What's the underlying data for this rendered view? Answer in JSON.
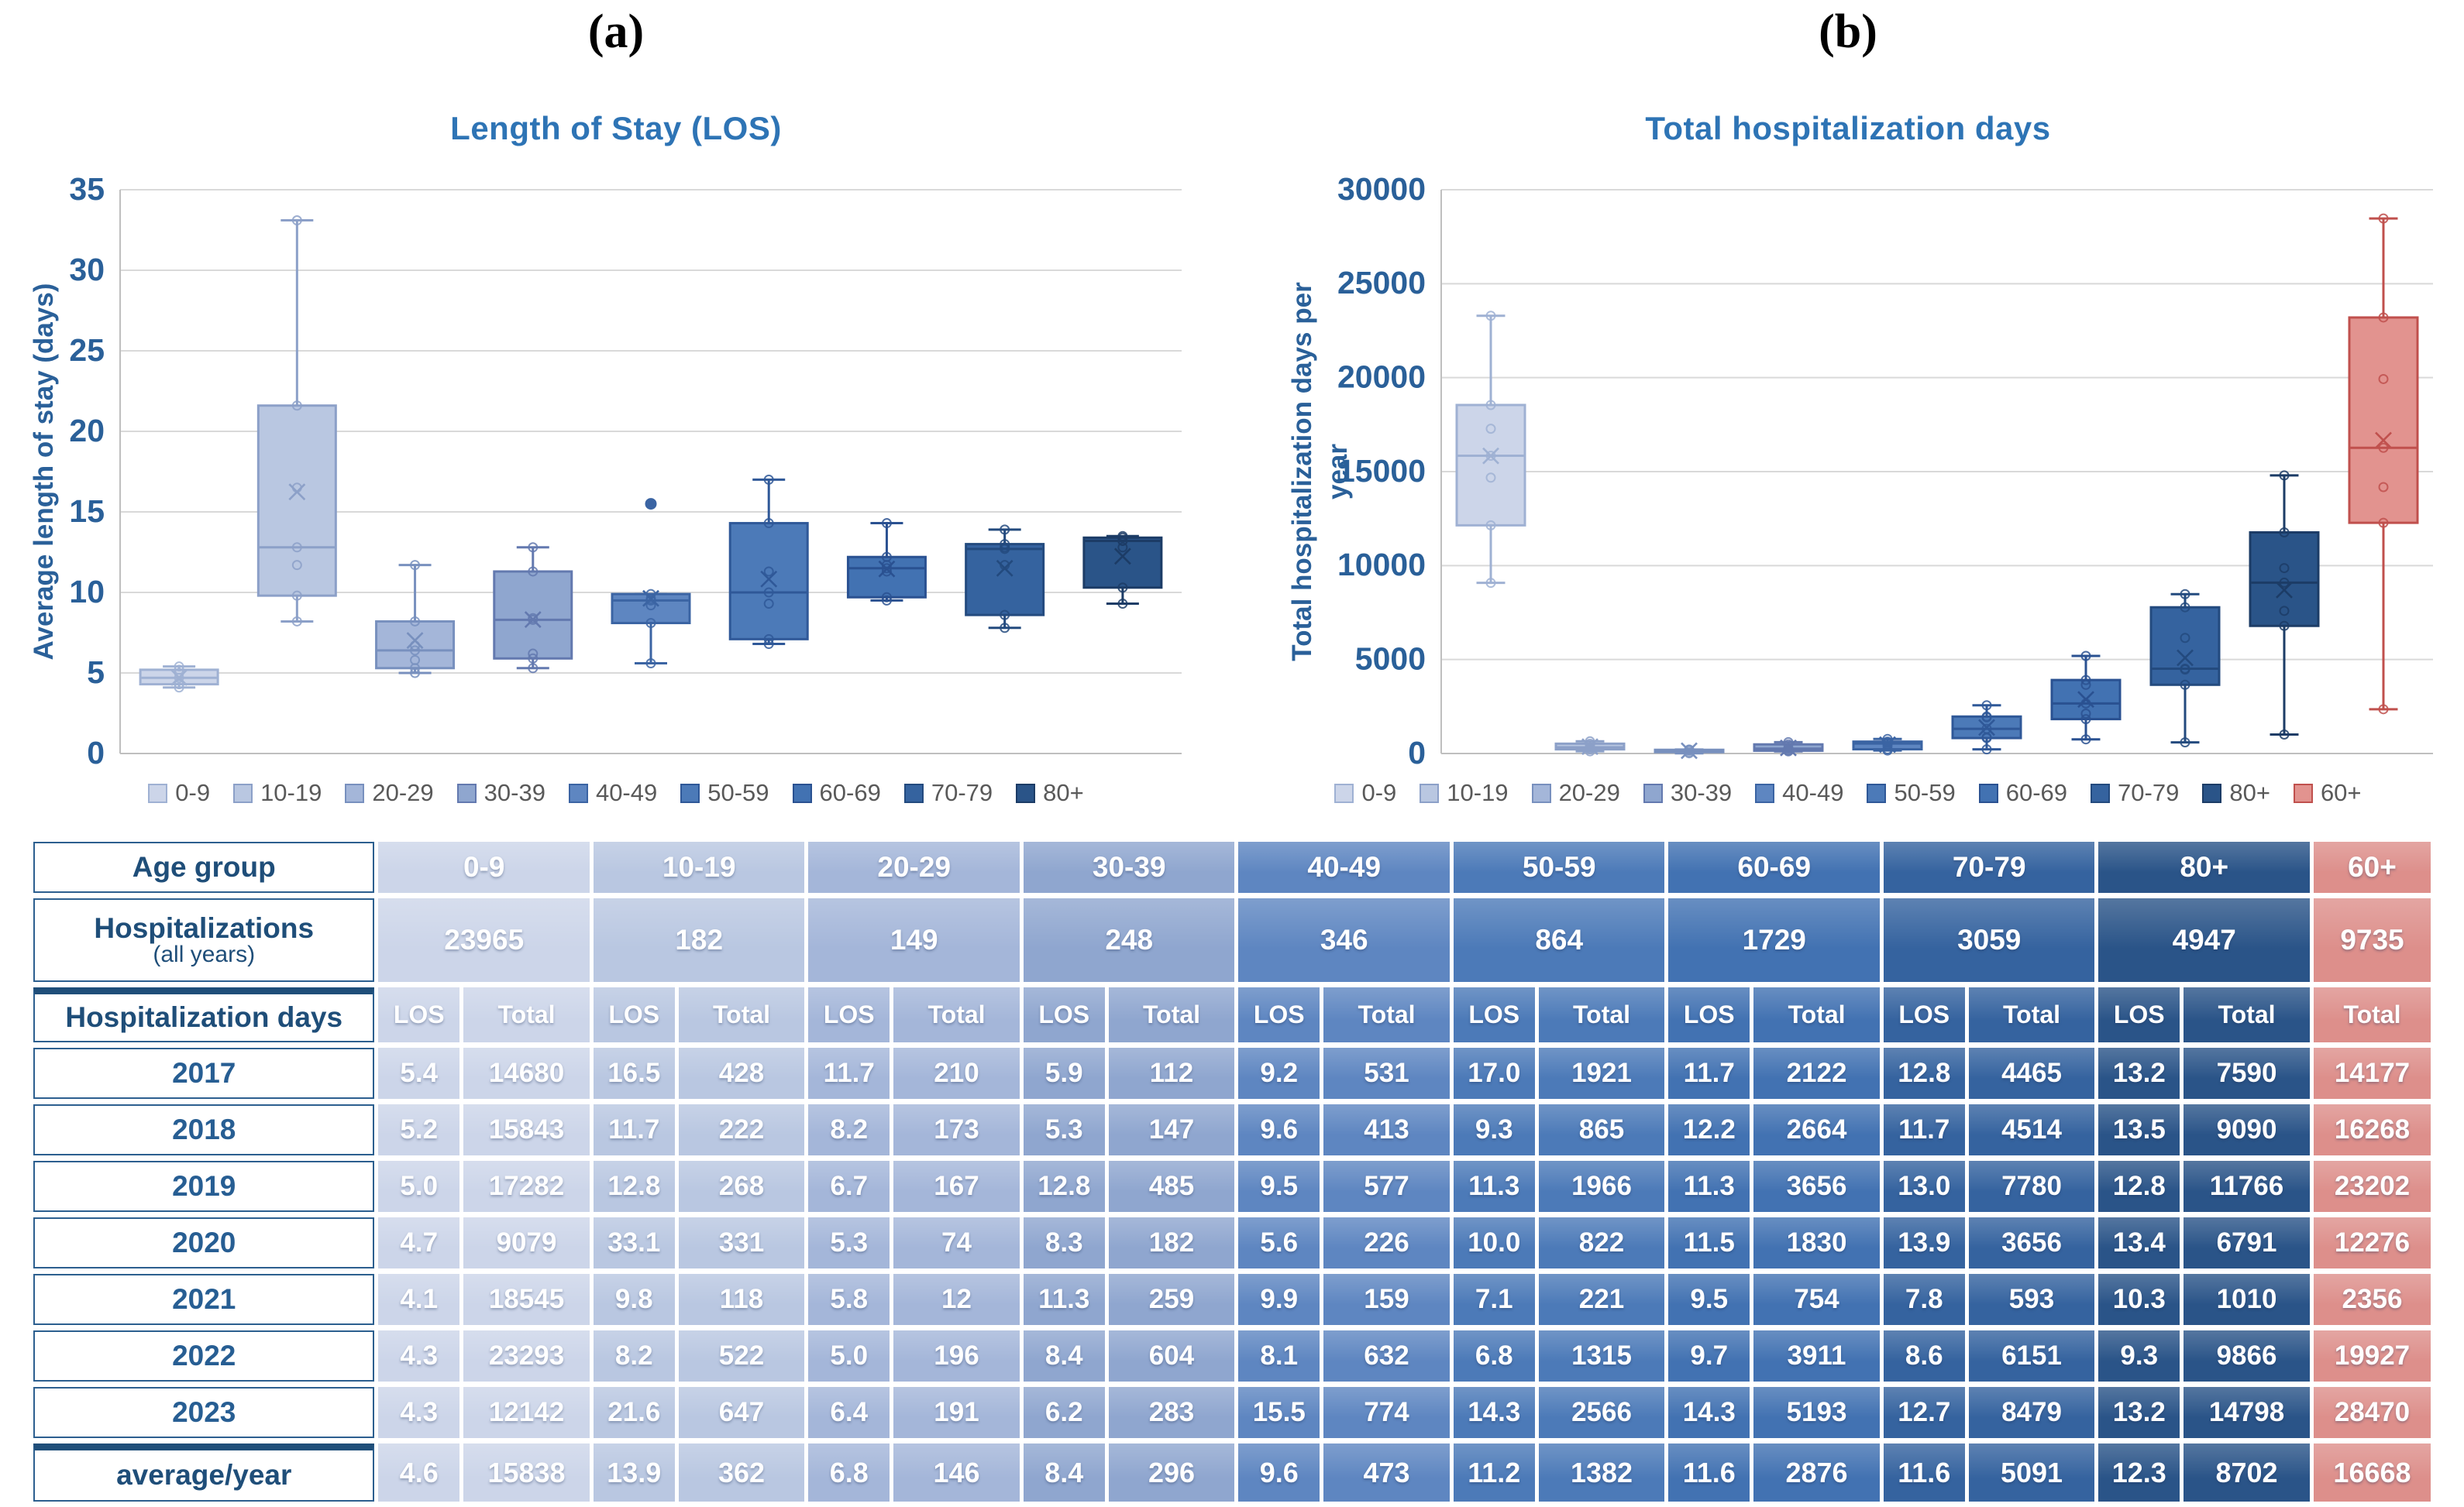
{
  "figure": {
    "panel_a_label": "(a)",
    "panel_b_label": "(b)"
  },
  "panel_a": {
    "title": "Length of Stay (LOS)"
  },
  "panel_b": {
    "title": "Total hospitalization days"
  },
  "colors": {
    "title_blue": "#2E74B5",
    "axis_blue": "#2A6099",
    "table_header_navy": "#1F4E79",
    "legend_text_gray": "#595959",
    "gridline": "#D9D9D9",
    "axis_line": "#BFBFBF",
    "pink_accent": "#C0504D"
  },
  "chart_data": [
    {
      "type": "boxplot",
      "title": "Length of Stay (LOS)",
      "ylabel": "Average length of stay (days)",
      "ylabel_lines": [
        "Average length of stay (days)"
      ],
      "ylim": [
        0,
        35
      ],
      "ytick_step": 5,
      "grid": true,
      "legend_position": "bottom",
      "years_per_point": [
        2017,
        2018,
        2019,
        2020,
        2021,
        2022,
        2023
      ],
      "groups": [
        {
          "label": "0-9",
          "fill": "#CCD5E9",
          "stroke": "#9FB1D3",
          "values": [
            5.4,
            5.2,
            5.0,
            4.7,
            4.1,
            4.3,
            4.3
          ]
        },
        {
          "label": "10-19",
          "fill": "#B9C7E1",
          "stroke": "#8CA0C8",
          "values": [
            16.5,
            11.7,
            12.8,
            33.1,
            9.8,
            8.2,
            21.6
          ]
        },
        {
          "label": "20-29",
          "fill": "#A4B6D9",
          "stroke": "#7890BE",
          "values": [
            11.7,
            8.2,
            6.7,
            5.3,
            5.8,
            5.0,
            6.4
          ]
        },
        {
          "label": "30-39",
          "fill": "#8FA6CF",
          "stroke": "#6379AF",
          "values": [
            5.9,
            5.3,
            12.8,
            8.3,
            11.3,
            8.4,
            6.2
          ]
        },
        {
          "label": "40-49",
          "fill": "#5E86C1",
          "stroke": "#3B64A3",
          "values": [
            9.2,
            9.6,
            9.5,
            5.6,
            9.9,
            8.1,
            15.5
          ]
        },
        {
          "label": "50-59",
          "fill": "#4C7AB8",
          "stroke": "#2F5898",
          "values": [
            17.0,
            9.3,
            11.3,
            10.0,
            7.1,
            6.8,
            14.3
          ]
        },
        {
          "label": "60-69",
          "fill": "#4272B2",
          "stroke": "#2A5191",
          "values": [
            11.7,
            12.2,
            11.3,
            11.5,
            9.5,
            9.7,
            14.3
          ]
        },
        {
          "label": "70-79",
          "fill": "#35639F",
          "stroke": "#234A7E",
          "values": [
            12.8,
            11.7,
            13.0,
            13.9,
            7.8,
            8.6,
            12.7
          ]
        },
        {
          "label": "80+",
          "fill": "#2A5488",
          "stroke": "#1C3C66",
          "values": [
            13.2,
            13.5,
            12.8,
            13.4,
            10.3,
            9.3,
            13.2
          ]
        }
      ]
    },
    {
      "type": "boxplot",
      "title": "Total hospitalization days",
      "ylabel": "Total hospitalization days per year",
      "ylabel_lines": [
        "Total hospitalization days per",
        "year"
      ],
      "ylim": [
        0,
        30000
      ],
      "ytick_step": 5000,
      "grid": true,
      "legend_position": "bottom",
      "years_per_point": [
        2017,
        2018,
        2019,
        2020,
        2021,
        2022,
        2023
      ],
      "groups": [
        {
          "label": "0-9",
          "fill": "#CCD5E9",
          "stroke": "#9FB1D3",
          "values": [
            14680,
            15843,
            17282,
            9079,
            18545,
            23293,
            12142
          ]
        },
        {
          "label": "10-19",
          "fill": "#B9C7E1",
          "stroke": "#8CA0C8",
          "values": [
            428,
            222,
            268,
            331,
            118,
            522,
            647
          ]
        },
        {
          "label": "20-29",
          "fill": "#A4B6D9",
          "stroke": "#7890BE",
          "values": [
            210,
            173,
            167,
            74,
            12,
            196,
            191
          ]
        },
        {
          "label": "30-39",
          "fill": "#8FA6CF",
          "stroke": "#6379AF",
          "values": [
            112,
            147,
            485,
            182,
            259,
            604,
            283
          ]
        },
        {
          "label": "40-49",
          "fill": "#5E86C1",
          "stroke": "#3B64A3",
          "values": [
            531,
            413,
            577,
            226,
            159,
            632,
            774
          ]
        },
        {
          "label": "50-59",
          "fill": "#4C7AB8",
          "stroke": "#2F5898",
          "values": [
            1921,
            865,
            1966,
            822,
            221,
            1315,
            2566
          ]
        },
        {
          "label": "60-69",
          "fill": "#4272B2",
          "stroke": "#2A5191",
          "values": [
            2122,
            2664,
            3656,
            1830,
            754,
            3911,
            5193
          ]
        },
        {
          "label": "70-79",
          "fill": "#35639F",
          "stroke": "#234A7E",
          "values": [
            4465,
            4514,
            7780,
            3656,
            593,
            6151,
            8479
          ]
        },
        {
          "label": "80+",
          "fill": "#2A5488",
          "stroke": "#1C3C66",
          "values": [
            7590,
            9090,
            11766,
            6791,
            1010,
            9866,
            14798
          ]
        },
        {
          "label": "60+",
          "fill": "#E2938F",
          "stroke": "#C0504D",
          "values": [
            14177,
            16268,
            23202,
            12276,
            2356,
            19927,
            28470
          ]
        }
      ]
    }
  ],
  "table": {
    "row_headers": {
      "age_group": "Age group",
      "hospitalizations_line1": "Hospitalizations",
      "hospitalizations_line2": "(all years)",
      "hospitalization_days": "Hospitalization days",
      "average": "average/year"
    },
    "age_groups": [
      "0-9",
      "10-19",
      "20-29",
      "30-39",
      "40-49",
      "50-59",
      "60-69",
      "70-79",
      "80+",
      "60+"
    ],
    "group_fills": [
      "#CCD5E9",
      "#B9C7E1",
      "#A4B6D9",
      "#8FA6CF",
      "#5E86C1",
      "#4C7AB8",
      "#4272B2",
      "#35639F",
      "#2A5488",
      "#DD8F8B"
    ],
    "hospitalizations_all_years": [
      "23965",
      "182",
      "149",
      "248",
      "346",
      "864",
      "1729",
      "3059",
      "4947",
      "9735"
    ],
    "sub_headers": [
      "LOS",
      "Total"
    ],
    "last_col_sub_header": "Total",
    "years": [
      {
        "year": "2017",
        "values": [
          "5.4",
          "14680",
          "16.5",
          "428",
          "11.7",
          "210",
          "5.9",
          "112",
          "9.2",
          "531",
          "17.0",
          "1921",
          "11.7",
          "2122",
          "12.8",
          "4465",
          "13.2",
          "7590",
          "14177"
        ]
      },
      {
        "year": "2018",
        "values": [
          "5.2",
          "15843",
          "11.7",
          "222",
          "8.2",
          "173",
          "5.3",
          "147",
          "9.6",
          "413",
          "9.3",
          "865",
          "12.2",
          "2664",
          "11.7",
          "4514",
          "13.5",
          "9090",
          "16268"
        ]
      },
      {
        "year": "2019",
        "values": [
          "5.0",
          "17282",
          "12.8",
          "268",
          "6.7",
          "167",
          "12.8",
          "485",
          "9.5",
          "577",
          "11.3",
          "1966",
          "11.3",
          "3656",
          "13.0",
          "7780",
          "12.8",
          "11766",
          "23202"
        ]
      },
      {
        "year": "2020",
        "values": [
          "4.7",
          "9079",
          "33.1",
          "331",
          "5.3",
          "74",
          "8.3",
          "182",
          "5.6",
          "226",
          "10.0",
          "822",
          "11.5",
          "1830",
          "13.9",
          "3656",
          "13.4",
          "6791",
          "12276"
        ]
      },
      {
        "year": "2021",
        "values": [
          "4.1",
          "18545",
          "9.8",
          "118",
          "5.8",
          "12",
          "11.3",
          "259",
          "9.9",
          "159",
          "7.1",
          "221",
          "9.5",
          "754",
          "7.8",
          "593",
          "10.3",
          "1010",
          "2356"
        ]
      },
      {
        "year": "2022",
        "values": [
          "4.3",
          "23293",
          "8.2",
          "522",
          "5.0",
          "196",
          "8.4",
          "604",
          "8.1",
          "632",
          "6.8",
          "1315",
          "9.7",
          "3911",
          "8.6",
          "6151",
          "9.3",
          "9866",
          "19927"
        ]
      },
      {
        "year": "2023",
        "values": [
          "4.3",
          "12142",
          "21.6",
          "647",
          "6.4",
          "191",
          "6.2",
          "283",
          "15.5",
          "774",
          "14.3",
          "2566",
          "14.3",
          "5193",
          "12.7",
          "8479",
          "13.2",
          "14798",
          "28470"
        ]
      }
    ],
    "average_row": {
      "values": [
        "4.6",
        "15838",
        "13.9",
        "362",
        "6.8",
        "146",
        "8.4",
        "296",
        "9.6",
        "473",
        "11.2",
        "1382",
        "11.6",
        "2876",
        "11.6",
        "5091",
        "12.3",
        "8702",
        "16668"
      ]
    }
  }
}
